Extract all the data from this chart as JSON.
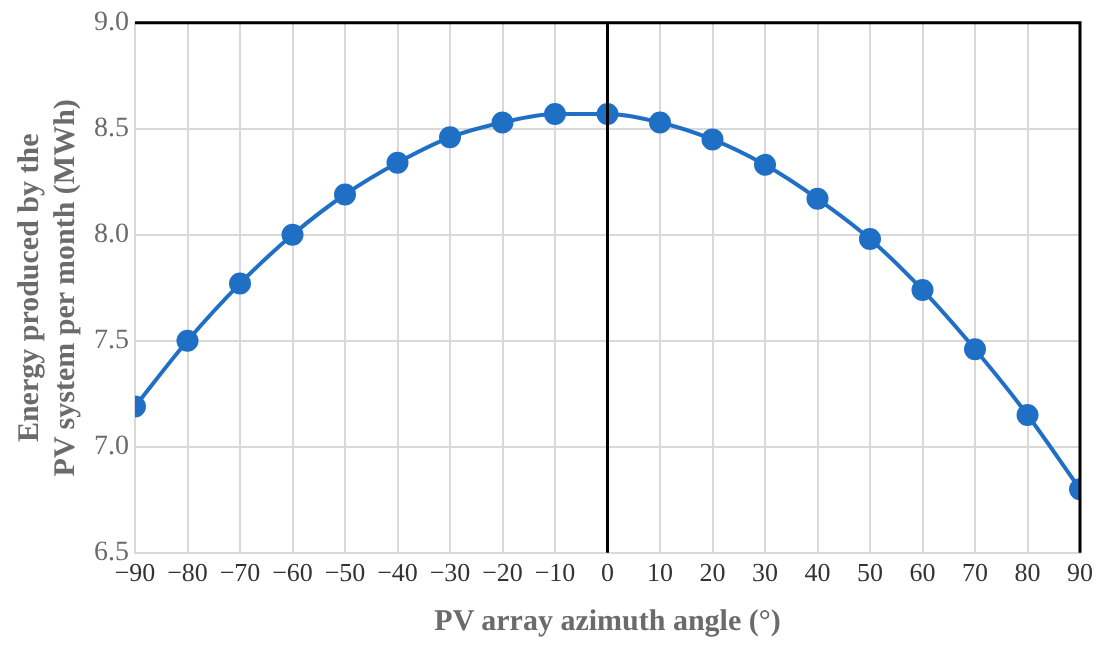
{
  "chart_data": {
    "type": "line",
    "xlabel": "PV array azimuth angle (°)",
    "ylabel": "Energy produced by the PV system per month (MWh)",
    "x": [
      -90,
      -80,
      -70,
      -60,
      -50,
      -40,
      -30,
      -20,
      -10,
      0,
      10,
      20,
      30,
      40,
      50,
      60,
      70,
      80,
      90
    ],
    "series": [
      {
        "color": "#1f6fc5",
        "values": [
          7.19,
          7.5,
          7.77,
          8.0,
          8.19,
          8.34,
          8.46,
          8.53,
          8.57,
          8.57,
          8.53,
          8.45,
          8.33,
          8.17,
          7.98,
          7.74,
          7.46,
          7.15,
          6.8
        ]
      }
    ],
    "xlim": [
      -90,
      90
    ],
    "xticks": [
      -90,
      -80,
      -70,
      -60,
      -50,
      -40,
      -30,
      -20,
      -10,
      0,
      10,
      20,
      30,
      40,
      50,
      60,
      70,
      80,
      90
    ],
    "ylim": [
      6.5,
      9.0
    ],
    "yticks": [
      {
        "value": 6.5,
        "label": "6.5"
      },
      {
        "value": 7.0,
        "label": "7.0"
      },
      {
        "value": 7.5,
        "label": "7.5"
      },
      {
        "value": 8.0,
        "label": "8.0"
      },
      {
        "value": 8.5,
        "label": "8.5"
      },
      {
        "value": 9.0,
        "label": "9.0"
      }
    ],
    "ref_lines": [
      {
        "axis": "x",
        "value": 0,
        "color": "#000000"
      }
    ],
    "grid": true,
    "legend": false,
    "marker": "circle",
    "line_style": "solid"
  }
}
